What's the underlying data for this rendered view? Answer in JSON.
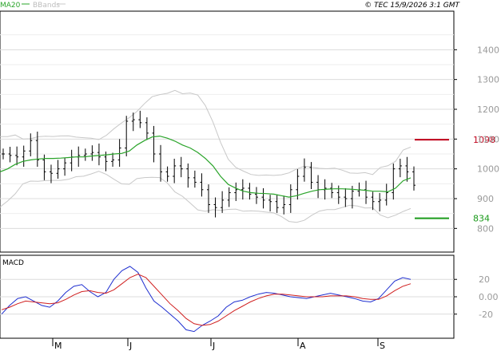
{
  "header": {
    "ma_label": "MA20",
    "bands_label": "BBands",
    "copyright": "© TEC 15/9/2026 3:1 GMT"
  },
  "colors": {
    "ma": "#2aa42a",
    "bands": "#c8c8c8",
    "price": "#000000",
    "macd": "#1f2fd0",
    "signal": "#d01f1f",
    "resistance": "#c0001a",
    "support": "#1a9a1a",
    "grid": "#dcdcdc",
    "tick_text": "#9a9a9a"
  },
  "chart_data": [
    {
      "type": "line",
      "title": "",
      "xlabel": "",
      "ylabel": "",
      "x_ticks": [
        "M",
        "J",
        "J",
        "A",
        "S"
      ],
      "ylim": [
        750,
        1500
      ],
      "y_ticks": [
        800,
        900,
        1000,
        1100,
        1200,
        1300,
        1400
      ],
      "grid": true,
      "level_lines": [
        {
          "label": "1098",
          "value": 1098
        },
        {
          "label": "834",
          "value": 834
        }
      ],
      "series": [
        {
          "name": "MA20",
          "values": [
            990,
            1000,
            1015,
            1025,
            1030,
            1033,
            1035,
            1035,
            1036,
            1038,
            1040,
            1040,
            1043,
            1045,
            1047,
            1050,
            1052,
            1060,
            1080,
            1095,
            1107,
            1110,
            1103,
            1093,
            1080,
            1070,
            1055,
            1035,
            1010,
            975,
            948,
            935,
            925,
            920,
            918,
            917,
            915,
            910,
            905,
            910,
            918,
            925,
            930,
            932,
            933,
            933,
            932,
            930,
            928,
            925,
            925,
            923,
            935,
            960,
            970
          ]
        },
        {
          "name": "Close",
          "values": [
            1050,
            1045,
            1040,
            1060,
            1095,
            1030,
            990,
            985,
            1000,
            1020,
            1040,
            1045,
            1050,
            1055,
            1040,
            1025,
            1030,
            1070,
            1160,
            1165,
            1155,
            1120,
            1050,
            990,
            975,
            1010,
            1000,
            970,
            955,
            930,
            880,
            870,
            895,
            920,
            930,
            935,
            915,
            905,
            895,
            890,
            870,
            880,
            930,
            975,
            1005,
            955,
            930,
            935,
            920,
            905,
            900,
            925,
            930,
            905,
            890,
            895,
            920,
            1000,
            1010,
            990,
            945
          ]
        }
      ],
      "series_all": [
        {
          "name": "MA20",
          "values": [
            990,
            1000,
            1015,
            1025,
            1030,
            1033,
            1035,
            1035,
            1036,
            1038,
            1040,
            1040,
            1043,
            1045,
            1047,
            1050,
            1052,
            1060,
            1080,
            1095,
            1107,
            1110,
            1103,
            1093,
            1080,
            1070,
            1055,
            1035,
            1010,
            975,
            948,
            935,
            925,
            920,
            918,
            917,
            915,
            910,
            905,
            910,
            918,
            925,
            930,
            932,
            933,
            933,
            932,
            930,
            928,
            925,
            925,
            923,
            935,
            960,
            970
          ]
        },
        {
          "name": "Close",
          "values": [
            1050,
            1045,
            1040,
            1060,
            1095,
            1030,
            990,
            985,
            1000,
            1020,
            1040,
            1045,
            1050,
            1055,
            1040,
            1025,
            1030,
            1070,
            1160,
            1165,
            1155,
            1120,
            1050,
            990,
            975,
            1010,
            1000,
            970,
            955,
            930,
            880,
            870,
            895,
            920,
            930,
            935,
            915,
            905,
            895,
            890,
            870,
            880,
            930,
            975,
            1005,
            955,
            930,
            935,
            920,
            905,
            900,
            925,
            930,
            905,
            890,
            895,
            920,
            1000,
            1010,
            990,
            945
          ]
        }
      ]
    },
    {
      "type": "line",
      "title": "MACD",
      "xlabel": "",
      "ylabel": "",
      "ylim": [
        -45,
        45
      ],
      "y_ticks": [
        20,
        0,
        -20
      ],
      "y_tick_labels": [
        "20",
        "0.00",
        "-20"
      ],
      "series": [
        {
          "name": "MACD",
          "values": [
            -20,
            -10,
            -2,
            0,
            -5,
            -10,
            -12,
            -5,
            5,
            12,
            14,
            6,
            0,
            5,
            20,
            30,
            35,
            28,
            10,
            -5,
            -12,
            -20,
            -28,
            -38,
            -40,
            -33,
            -28,
            -22,
            -12,
            -6,
            -4,
            0,
            3,
            5,
            4,
            2,
            0,
            -1,
            -2,
            0,
            2,
            4,
            2,
            0,
            -2,
            -5,
            -6,
            -2,
            8,
            18,
            22,
            20
          ]
        },
        {
          "name": "Signal",
          "values": [
            -15,
            -12,
            -8,
            -5,
            -6,
            -7,
            -8,
            -7,
            -3,
            2,
            6,
            7,
            5,
            4,
            8,
            15,
            22,
            26,
            22,
            12,
            2,
            -8,
            -16,
            -25,
            -31,
            -33,
            -32,
            -28,
            -22,
            -16,
            -11,
            -6,
            -2,
            1,
            3,
            3,
            2,
            1,
            0,
            0,
            0,
            1,
            1,
            1,
            0,
            -2,
            -3,
            -3,
            1,
            7,
            12,
            15
          ]
        }
      ]
    }
  ]
}
